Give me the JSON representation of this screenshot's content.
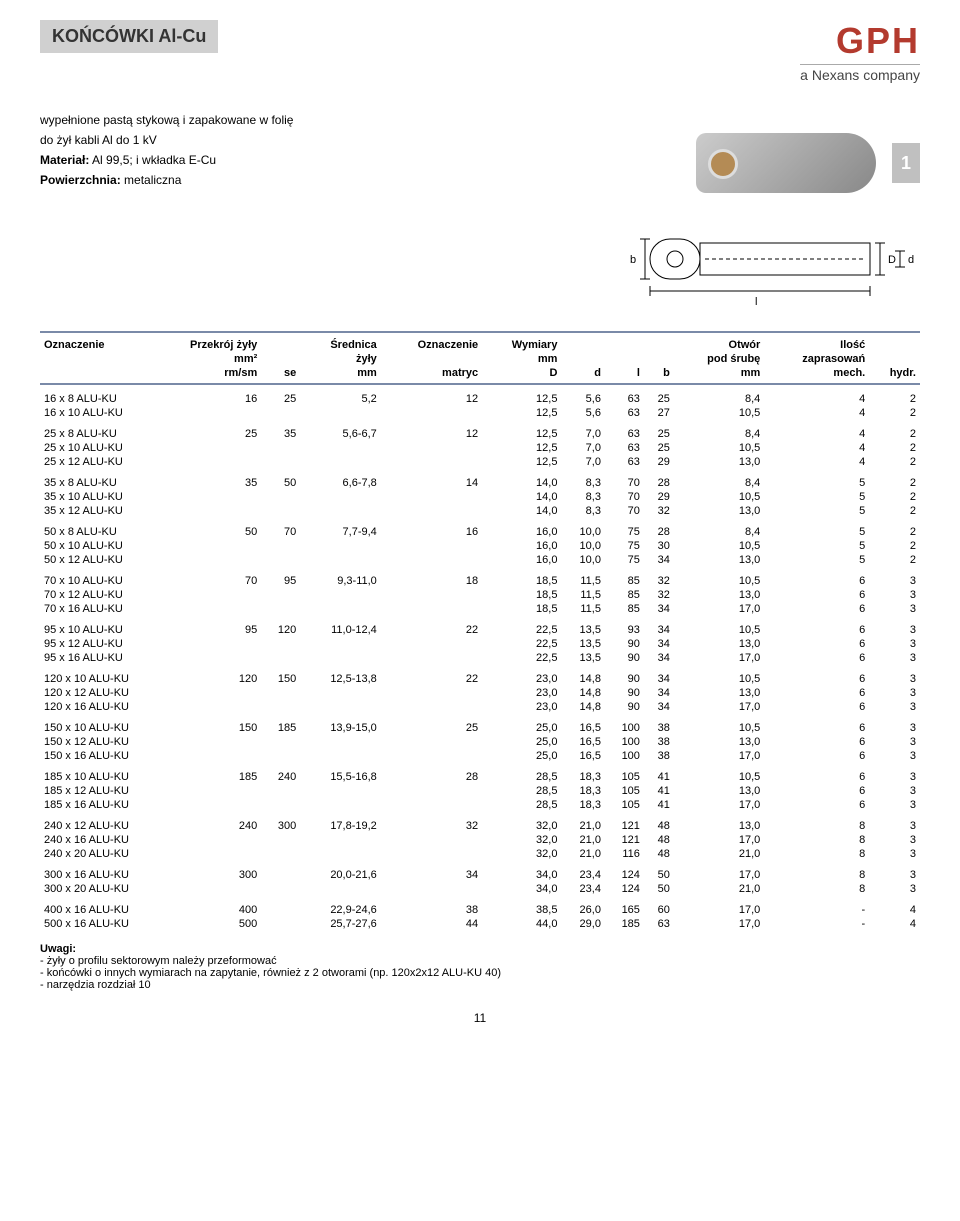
{
  "header": {
    "title": "KOŃCÓWKI Al-Cu",
    "logo_text": "GPH",
    "logo_sub": "a Nexans company",
    "page_badge": "1"
  },
  "intro": {
    "line1": "wypełnione pastą stykową i zapakowane w folię",
    "line2": "do żył kabli Al do 1 kV",
    "line3_label": "Materiał:",
    "line3_val": " Al 99,5; i wkładka E-Cu",
    "line4_label": "Powierzchnia:",
    "line4_val": " metaliczna"
  },
  "diagram": {
    "b": "b",
    "D": "D",
    "d": "d",
    "l": "l"
  },
  "table": {
    "headers": {
      "r1": [
        "Oznaczenie",
        "Przekrój żyły",
        "",
        "Średnica",
        "Oznaczenie",
        "Wymiary",
        "",
        "",
        "",
        "Otwór",
        "Ilość",
        ""
      ],
      "r2": [
        "",
        "mm²",
        "",
        "żyły",
        "",
        "mm",
        "",
        "",
        "",
        "pod śrubę",
        "zaprasowań",
        ""
      ],
      "r3": [
        "",
        "rm/sm",
        "se",
        "mm",
        "matryc",
        "D",
        "d",
        "l",
        "b",
        "mm",
        "mech.",
        "hydr."
      ]
    },
    "groups": [
      [
        [
          "16 x  8 ALU-KU",
          "16",
          "25",
          "5,2",
          "12",
          "12,5",
          "5,6",
          "63",
          "25",
          "8,4",
          "4",
          "2"
        ],
        [
          "16 x 10 ALU-KU",
          "",
          "",
          "",
          "",
          "12,5",
          "5,6",
          "63",
          "27",
          "10,5",
          "4",
          "2"
        ]
      ],
      [
        [
          "25 x  8 ALU-KU",
          "25",
          "35",
          "5,6-6,7",
          "12",
          "12,5",
          "7,0",
          "63",
          "25",
          "8,4",
          "4",
          "2"
        ],
        [
          "25 x 10 ALU-KU",
          "",
          "",
          "",
          "",
          "12,5",
          "7,0",
          "63",
          "25",
          "10,5",
          "4",
          "2"
        ],
        [
          "25 x 12 ALU-KU",
          "",
          "",
          "",
          "",
          "12,5",
          "7,0",
          "63",
          "29",
          "13,0",
          "4",
          "2"
        ]
      ],
      [
        [
          "35 x  8 ALU-KU",
          "35",
          "50",
          "6,6-7,8",
          "14",
          "14,0",
          "8,3",
          "70",
          "28",
          "8,4",
          "5",
          "2"
        ],
        [
          "35 x 10 ALU-KU",
          "",
          "",
          "",
          "",
          "14,0",
          "8,3",
          "70",
          "29",
          "10,5",
          "5",
          "2"
        ],
        [
          "35 x 12 ALU-KU",
          "",
          "",
          "",
          "",
          "14,0",
          "8,3",
          "70",
          "32",
          "13,0",
          "5",
          "2"
        ]
      ],
      [
        [
          "50 x  8 ALU-KU",
          "50",
          "70",
          "7,7-9,4",
          "16",
          "16,0",
          "10,0",
          "75",
          "28",
          "8,4",
          "5",
          "2"
        ],
        [
          "50 x 10 ALU-KU",
          "",
          "",
          "",
          "",
          "16,0",
          "10,0",
          "75",
          "30",
          "10,5",
          "5",
          "2"
        ],
        [
          "50 x 12 ALU-KU",
          "",
          "",
          "",
          "",
          "16,0",
          "10,0",
          "75",
          "34",
          "13,0",
          "5",
          "2"
        ]
      ],
      [
        [
          "70 x 10 ALU-KU",
          "70",
          "95",
          "9,3-11,0",
          "18",
          "18,5",
          "11,5",
          "85",
          "32",
          "10,5",
          "6",
          "3"
        ],
        [
          "70 x 12 ALU-KU",
          "",
          "",
          "",
          "",
          "18,5",
          "11,5",
          "85",
          "32",
          "13,0",
          "6",
          "3"
        ],
        [
          "70 x 16 ALU-KU",
          "",
          "",
          "",
          "",
          "18,5",
          "11,5",
          "85",
          "34",
          "17,0",
          "6",
          "3"
        ]
      ],
      [
        [
          "95 x 10 ALU-KU",
          "95",
          "120",
          "11,0-12,4",
          "22",
          "22,5",
          "13,5",
          "93",
          "34",
          "10,5",
          "6",
          "3"
        ],
        [
          "95 x 12 ALU-KU",
          "",
          "",
          "",
          "",
          "22,5",
          "13,5",
          "90",
          "34",
          "13,0",
          "6",
          "3"
        ],
        [
          "95 x 16 ALU-KU",
          "",
          "",
          "",
          "",
          "22,5",
          "13,5",
          "90",
          "34",
          "17,0",
          "6",
          "3"
        ]
      ],
      [
        [
          "120 x 10 ALU-KU",
          "120",
          "150",
          "12,5-13,8",
          "22",
          "23,0",
          "14,8",
          "90",
          "34",
          "10,5",
          "6",
          "3"
        ],
        [
          "120 x 12 ALU-KU",
          "",
          "",
          "",
          "",
          "23,0",
          "14,8",
          "90",
          "34",
          "13,0",
          "6",
          "3"
        ],
        [
          "120 x 16 ALU-KU",
          "",
          "",
          "",
          "",
          "23,0",
          "14,8",
          "90",
          "34",
          "17,0",
          "6",
          "3"
        ]
      ],
      [
        [
          "150 x 10 ALU-KU",
          "150",
          "185",
          "13,9-15,0",
          "25",
          "25,0",
          "16,5",
          "100",
          "38",
          "10,5",
          "6",
          "3"
        ],
        [
          "150 x 12 ALU-KU",
          "",
          "",
          "",
          "",
          "25,0",
          "16,5",
          "100",
          "38",
          "13,0",
          "6",
          "3"
        ],
        [
          "150 x 16 ALU-KU",
          "",
          "",
          "",
          "",
          "25,0",
          "16,5",
          "100",
          "38",
          "17,0",
          "6",
          "3"
        ]
      ],
      [
        [
          "185 x 10 ALU-KU",
          "185",
          "240",
          "15,5-16,8",
          "28",
          "28,5",
          "18,3",
          "105",
          "41",
          "10,5",
          "6",
          "3"
        ],
        [
          "185 x 12 ALU-KU",
          "",
          "",
          "",
          "",
          "28,5",
          "18,3",
          "105",
          "41",
          "13,0",
          "6",
          "3"
        ],
        [
          "185 x 16 ALU-KU",
          "",
          "",
          "",
          "",
          "28,5",
          "18,3",
          "105",
          "41",
          "17,0",
          "6",
          "3"
        ]
      ],
      [
        [
          "240 x 12 ALU-KU",
          "240",
          "300",
          "17,8-19,2",
          "32",
          "32,0",
          "21,0",
          "121",
          "48",
          "13,0",
          "8",
          "3"
        ],
        [
          "240 x 16 ALU-KU",
          "",
          "",
          "",
          "",
          "32,0",
          "21,0",
          "121",
          "48",
          "17,0",
          "8",
          "3"
        ],
        [
          "240 x 20 ALU-KU",
          "",
          "",
          "",
          "",
          "32,0",
          "21,0",
          "116",
          "48",
          "21,0",
          "8",
          "3"
        ]
      ],
      [
        [
          "300 x 16 ALU-KU",
          "300",
          "",
          "20,0-21,6",
          "34",
          "34,0",
          "23,4",
          "124",
          "50",
          "17,0",
          "8",
          "3"
        ],
        [
          "300 x 20 ALU-KU",
          "",
          "",
          "",
          "",
          "34,0",
          "23,4",
          "124",
          "50",
          "21,0",
          "8",
          "3"
        ]
      ],
      [
        [
          "400 x 16 ALU-KU",
          "400",
          "",
          "22,9-24,6",
          "38",
          "38,5",
          "26,0",
          "165",
          "60",
          "17,0",
          "-",
          "4"
        ],
        [
          "500 x 16 ALU-KU",
          "500",
          "",
          "25,7-27,6",
          "44",
          "44,0",
          "29,0",
          "185",
          "63",
          "17,0",
          "-",
          "4"
        ]
      ]
    ]
  },
  "notes": {
    "title": "Uwagi:",
    "l1": "- żyły o profilu sektorowym należy przeformować",
    "l2": "- końcówki o innych wymiarach na zapytanie, również z 2 otworami (np. 120x2x12 ALU-KU 40)",
    "l3": "- narzędzia rozdział 10"
  },
  "page_number": "11"
}
